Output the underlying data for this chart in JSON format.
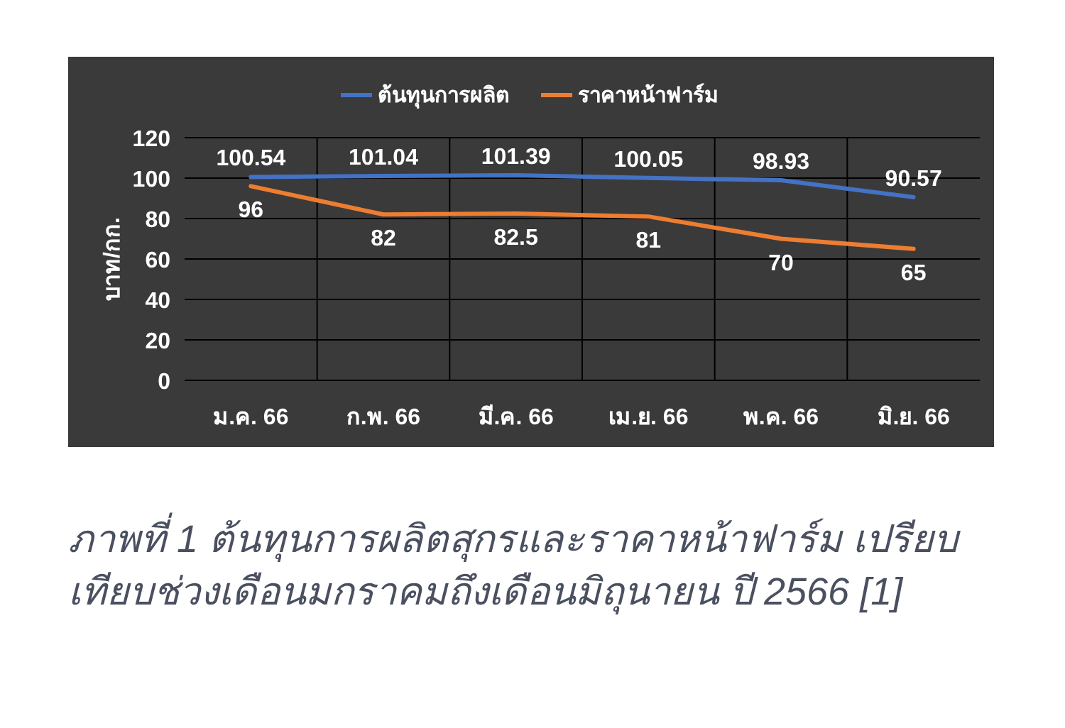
{
  "chart_data": {
    "type": "line",
    "ylabel": "บาท/กก.",
    "categories": [
      "ม.ค. 66",
      "ก.พ. 66",
      "มี.ค. 66",
      "เม.ย. 66",
      "พ.ค. 66",
      "มิ.ย. 66"
    ],
    "series": [
      {
        "name": "ต้นทุนการผลิต",
        "color": "#4472c4",
        "values": [
          100.54,
          101.04,
          101.39,
          100.05,
          98.93,
          90.57
        ]
      },
      {
        "name": "ราคาหน้าฟาร์ม",
        "color": "#ed7d31",
        "values": [
          96,
          82,
          82.5,
          81,
          70,
          65
        ]
      }
    ],
    "ylim": [
      0,
      120
    ],
    "yticks": [
      0,
      20,
      40,
      60,
      80,
      100,
      120
    ],
    "grid": true,
    "legend": "top",
    "data_labels": true,
    "marker": "none",
    "line_style": "solid",
    "annotations": [
      "ภาพที่ 1 ต้นทุนการผลิตสุกรและราคาหน้าฟาร์ม เปรียบเทียบช่วงเดือนมกราคมถึงเดือนมิถุนายน ปี 2566 [1]"
    ]
  }
}
